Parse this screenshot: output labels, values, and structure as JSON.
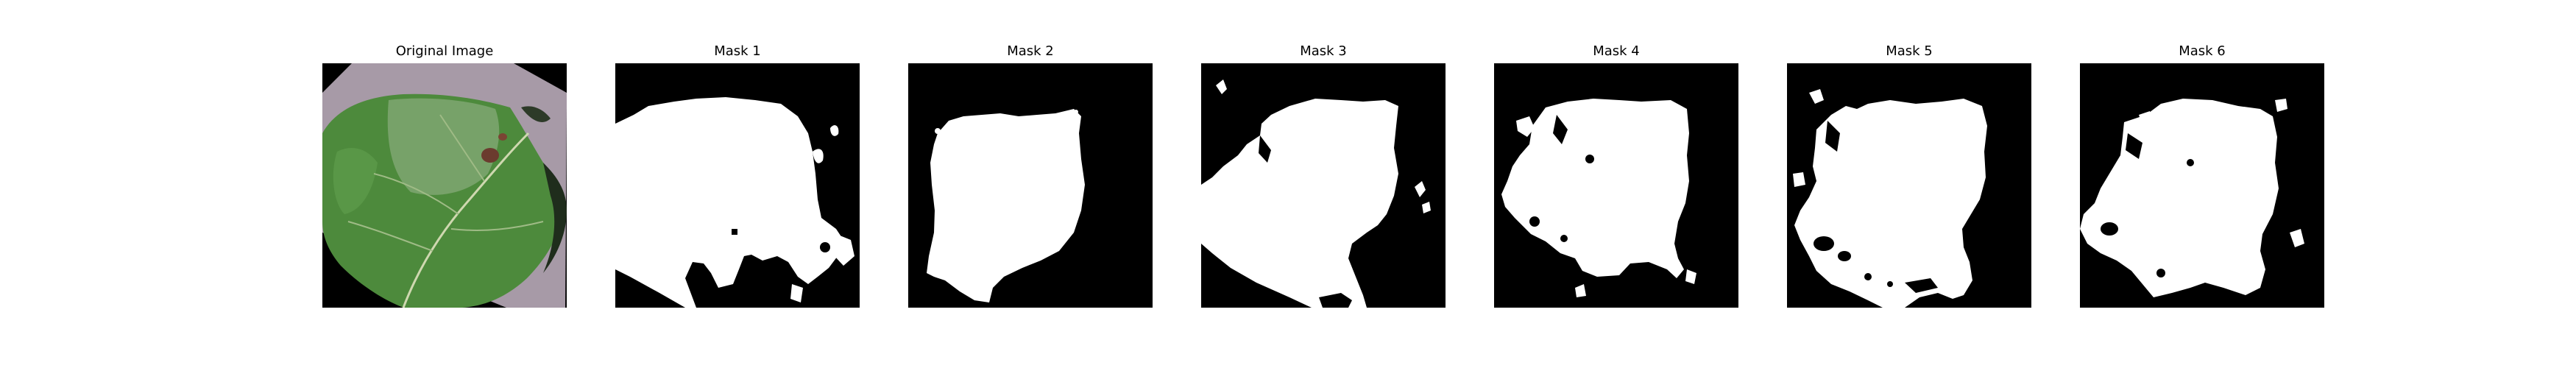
{
  "figure": {
    "panels": [
      {
        "title": "Original Image"
      },
      {
        "title": "Mask 1"
      },
      {
        "title": "Mask 2"
      },
      {
        "title": "Mask 3"
      },
      {
        "title": "Mask 4"
      },
      {
        "title": "Mask 5"
      },
      {
        "title": "Mask 6"
      }
    ]
  },
  "colors": {
    "mask_background": "#000000",
    "mask_foreground": "#ffffff",
    "photo_backdrop": "#a79aa7",
    "leaf_green": "#4d8a3c"
  }
}
